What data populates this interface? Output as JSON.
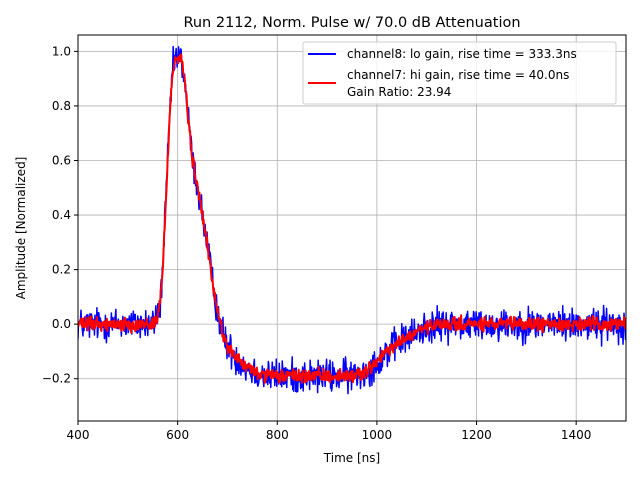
{
  "chart_data": {
    "type": "line",
    "title": "Run 2112, Norm. Pulse w/ 70.0 dB Attenuation",
    "xlabel": "Time [ns]",
    "ylabel": "Amplitude [Normalized]",
    "xlim": [
      400,
      1500
    ],
    "ylim": [
      -0.355,
      1.06
    ],
    "x_ticks": [
      400,
      600,
      800,
      1000,
      1200,
      1400
    ],
    "x_tick_labels": [
      "400",
      "600",
      "800",
      "1000",
      "1200",
      "1400"
    ],
    "y_ticks": [
      -0.2,
      0.0,
      0.2,
      0.4,
      0.6,
      0.8,
      1.0
    ],
    "y_tick_labels": [
      "−0.2",
      "0.0",
      "0.2",
      "0.4",
      "0.6",
      "0.8",
      "1.0"
    ],
    "grid": true,
    "legend_placement": "top-right",
    "legend_extra_text": "Gain Ratio: 23.94",
    "series": [
      {
        "name": "channel8: lo gain, rise time = 333.3ns",
        "color": "#0000ff",
        "noise": 0.03,
        "x": [
          400,
          500,
          550,
          560,
          565,
          570,
          575,
          580,
          585,
          590,
          595,
          600,
          605,
          610,
          615,
          620,
          625,
          630,
          640,
          650,
          660,
          670,
          680,
          690,
          700,
          720,
          740,
          760,
          780,
          800,
          850,
          900,
          950,
          980,
          1000,
          1020,
          1050,
          1080,
          1100,
          1150,
          1200,
          1300,
          1400,
          1500
        ],
        "values": [
          0.0,
          0.0,
          0.0,
          0.03,
          0.08,
          0.2,
          0.4,
          0.6,
          0.8,
          0.93,
          0.98,
          0.97,
          0.98,
          0.95,
          0.88,
          0.78,
          0.68,
          0.6,
          0.5,
          0.4,
          0.28,
          0.15,
          0.05,
          -0.03,
          -0.08,
          -0.13,
          -0.16,
          -0.18,
          -0.19,
          -0.19,
          -0.19,
          -0.19,
          -0.19,
          -0.17,
          -0.14,
          -0.1,
          -0.06,
          -0.03,
          -0.01,
          0.0,
          0.0,
          0.0,
          0.0,
          0.0
        ]
      },
      {
        "name": "channel7: hi gain, rise time = 40.0ns",
        "color": "#ff0000",
        "noise": 0.012,
        "x": [
          400,
          500,
          550,
          560,
          565,
          570,
          575,
          580,
          585,
          590,
          595,
          600,
          605,
          610,
          615,
          620,
          625,
          630,
          640,
          650,
          660,
          670,
          680,
          690,
          700,
          720,
          740,
          760,
          780,
          800,
          850,
          900,
          950,
          980,
          1000,
          1020,
          1050,
          1080,
          1100,
          1150,
          1200,
          1300,
          1400,
          1500
        ],
        "values": [
          0.0,
          0.0,
          0.0,
          0.03,
          0.08,
          0.2,
          0.4,
          0.6,
          0.8,
          0.93,
          0.98,
          0.97,
          0.98,
          0.95,
          0.88,
          0.78,
          0.68,
          0.6,
          0.5,
          0.4,
          0.28,
          0.15,
          0.05,
          -0.03,
          -0.08,
          -0.13,
          -0.16,
          -0.18,
          -0.19,
          -0.19,
          -0.19,
          -0.19,
          -0.19,
          -0.17,
          -0.14,
          -0.1,
          -0.06,
          -0.03,
          -0.01,
          0.0,
          0.0,
          0.0,
          0.0,
          0.0
        ]
      }
    ]
  }
}
